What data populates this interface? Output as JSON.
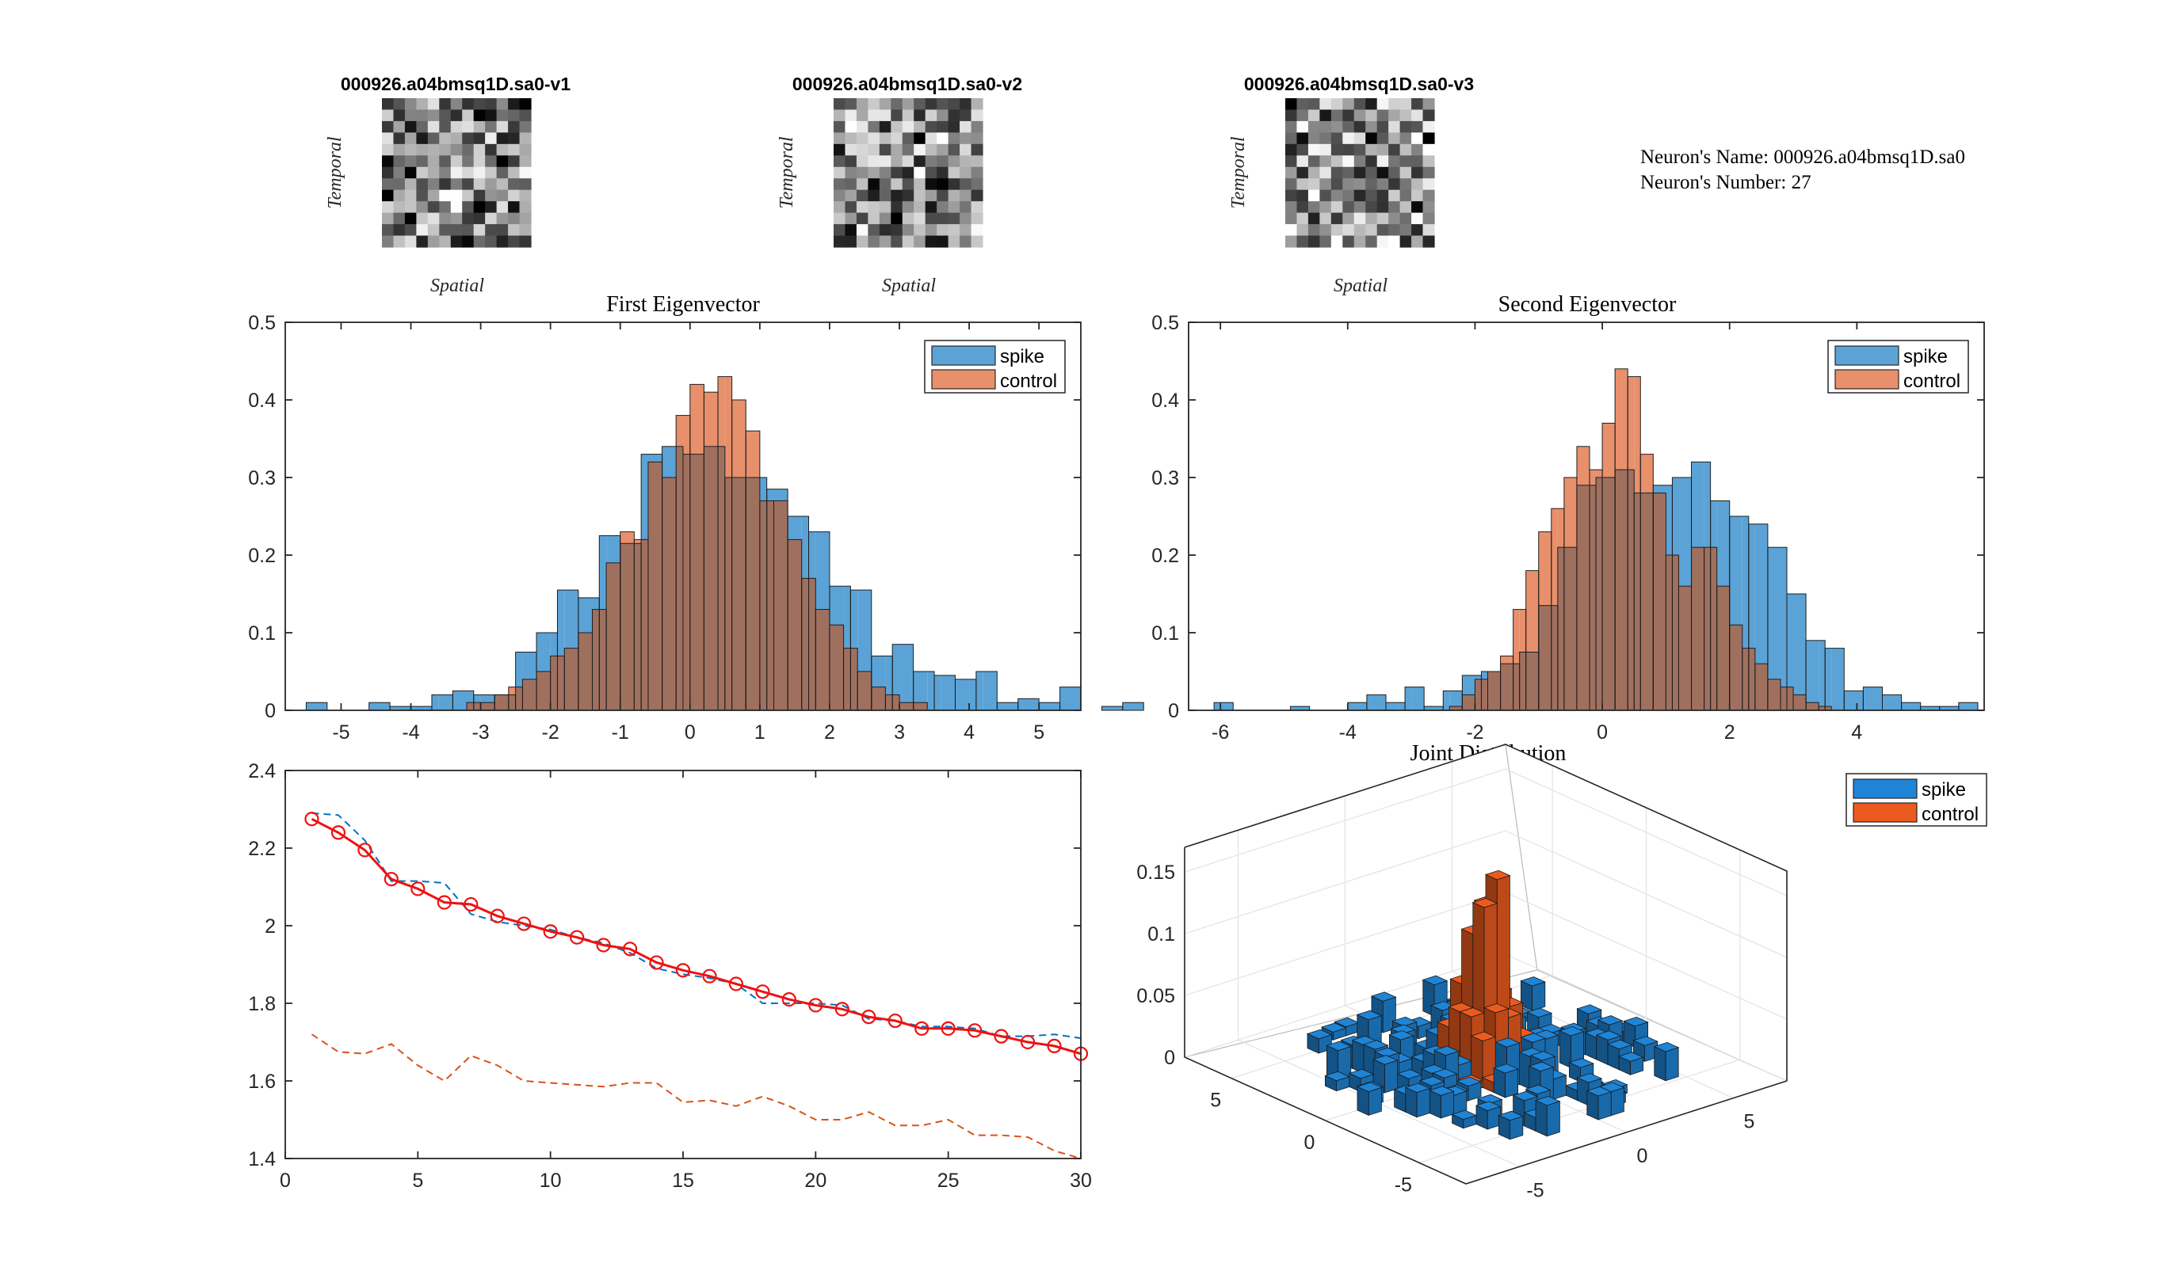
{
  "neuron_info": {
    "name_line": "Neuron's Name: 000926.a04bmsq1D.sa0",
    "number_line": "Neuron's Number: 27"
  },
  "filters": [
    {
      "title": "000926.a04bmsq1D.sa0-v1",
      "ylabel": "Temporal",
      "xlabel": "Spatial"
    },
    {
      "title": "000926.a04bmsq1D.sa0-v2",
      "ylabel": "Temporal",
      "xlabel": "Spatial"
    },
    {
      "title": "000926.a04bmsq1D.sa0-v3",
      "ylabel": "Temporal",
      "xlabel": "Spatial"
    }
  ],
  "colors": {
    "spike": "#5ba3d6",
    "control": "#e8906c",
    "overlap": "#a0705f",
    "red_line": "#ee1111",
    "blue_dash": "#0072bd",
    "orange_dash": "#d95319",
    "bar3_spike": "#1f84d6",
    "bar3_control": "#ec5b1e"
  },
  "chart_data": [
    {
      "type": "bar",
      "title": "First Eigenvector",
      "legend": [
        "spike",
        "control"
      ],
      "xlim": [
        -5.8,
        5.6
      ],
      "ylim": [
        0,
        0.5
      ],
      "xticks": [
        "-5",
        "-4",
        "-3",
        "-2",
        "-1",
        "0",
        "1",
        "2",
        "3",
        "4",
        "5"
      ],
      "yticks": [
        "0",
        "0.1",
        "0.2",
        "0.3",
        "0.4",
        "0.5"
      ],
      "spike": {
        "bin_start": -5.5,
        "bin_width": 0.3,
        "values": [
          0.01,
          0,
          0,
          0.01,
          0.005,
          0.005,
          0.02,
          0.025,
          0.02,
          0.02,
          0.075,
          0.1,
          0.155,
          0.145,
          0.225,
          0.215,
          0.33,
          0.34,
          0.33,
          0.34,
          0.3,
          0.3,
          0.285,
          0.25,
          0.23,
          0.16,
          0.155,
          0.07,
          0.085,
          0.05,
          0.045,
          0.04,
          0.05,
          0.01,
          0.015,
          0.01,
          0.03,
          0,
          0.005,
          0.01
        ]
      },
      "control": {
        "bin_start": -4.2,
        "bin_width": 0.2,
        "values": [
          0,
          0,
          0,
          0,
          0,
          0.01,
          0.01,
          0.02,
          0.03,
          0.04,
          0.05,
          0.07,
          0.08,
          0.1,
          0.13,
          0.19,
          0.23,
          0.22,
          0.32,
          0.3,
          0.38,
          0.42,
          0.41,
          0.43,
          0.4,
          0.36,
          0.27,
          0.27,
          0.22,
          0.17,
          0.13,
          0.11,
          0.08,
          0.05,
          0.03,
          0.02,
          0.01,
          0.01,
          0,
          0,
          0,
          0,
          0
        ]
      }
    },
    {
      "type": "bar",
      "title": "Second Eigenvector",
      "legend": [
        "spike",
        "control"
      ],
      "xlim": [
        -6.5,
        6
      ],
      "ylim": [
        0,
        0.5
      ],
      "xticks": [
        "-6",
        "-4",
        "-2",
        "0",
        "2",
        "4"
      ],
      "yticks": [
        "0",
        "0.1",
        "0.2",
        "0.3",
        "0.4",
        "0.5"
      ],
      "spike": {
        "bin_start": -6.1,
        "bin_width": 0.3,
        "values": [
          0.01,
          0,
          0,
          0,
          0.005,
          0,
          0,
          0.01,
          0.02,
          0.01,
          0.03,
          0.005,
          0.025,
          0.045,
          0.05,
          0.06,
          0.075,
          0.135,
          0.21,
          0.29,
          0.3,
          0.31,
          0.28,
          0.29,
          0.3,
          0.32,
          0.27,
          0.25,
          0.24,
          0.21,
          0.15,
          0.09,
          0.08,
          0.025,
          0.03,
          0.02,
          0.01,
          0.005,
          0.005,
          0.01
        ]
      },
      "control": {
        "bin_start": -3.2,
        "bin_width": 0.2,
        "values": [
          0,
          0,
          0,
          0,
          0.005,
          0.02,
          0.04,
          0.05,
          0.07,
          0.13,
          0.18,
          0.23,
          0.26,
          0.3,
          0.34,
          0.31,
          0.37,
          0.44,
          0.43,
          0.33,
          0.28,
          0.2,
          0.16,
          0.21,
          0.21,
          0.16,
          0.11,
          0.08,
          0.06,
          0.04,
          0.03,
          0.02,
          0.01,
          0.005
        ]
      }
    },
    {
      "type": "line",
      "title": "",
      "xlim": [
        0,
        30
      ],
      "ylim": [
        1.4,
        2.4
      ],
      "xticks": [
        "0",
        "5",
        "10",
        "15",
        "20",
        "25",
        "30"
      ],
      "yticks": [
        "1.4",
        "1.6",
        "1.8",
        "2",
        "2.2",
        "2.4"
      ],
      "x": [
        1,
        2,
        3,
        4,
        5,
        6,
        7,
        8,
        9,
        10,
        11,
        12,
        13,
        14,
        15,
        16,
        17,
        18,
        19,
        20,
        21,
        22,
        23,
        24,
        25,
        26,
        27,
        28,
        29,
        30
      ],
      "series": [
        {
          "style": "red-circle",
          "values": [
            2.275,
            2.24,
            2.195,
            2.12,
            2.095,
            2.06,
            2.055,
            2.025,
            2.005,
            1.985,
            1.97,
            1.95,
            1.94,
            1.905,
            1.885,
            1.87,
            1.85,
            1.83,
            1.81,
            1.795,
            1.785,
            1.765,
            1.755,
            1.735,
            1.735,
            1.73,
            1.715,
            1.7,
            1.69,
            1.67
          ]
        },
        {
          "style": "blue-dash",
          "values": [
            2.29,
            2.285,
            2.22,
            2.115,
            2.115,
            2.11,
            2.03,
            2.01,
            2.0,
            1.99,
            1.97,
            1.955,
            1.93,
            1.89,
            1.875,
            1.865,
            1.85,
            1.8,
            1.8,
            1.8,
            1.795,
            1.76,
            1.755,
            1.74,
            1.74,
            1.735,
            1.715,
            1.715,
            1.72,
            1.71
          ]
        },
        {
          "style": "orange-dash",
          "values": [
            1.72,
            1.675,
            1.67,
            1.695,
            1.64,
            1.6,
            1.665,
            1.64,
            1.6,
            1.595,
            1.59,
            1.585,
            1.595,
            1.595,
            1.545,
            1.55,
            1.535,
            1.56,
            1.535,
            1.5,
            1.5,
            1.52,
            1.485,
            1.485,
            1.5,
            1.46,
            1.46,
            1.455,
            1.42,
            1.4
          ]
        }
      ]
    },
    {
      "type": "bar3d",
      "title": "Joint Distribution",
      "legend": [
        "spike",
        "control"
      ],
      "zticks": [
        "0",
        "0.05",
        "0.1",
        "0.15"
      ],
      "xticks": [
        "-5",
        "0",
        "5"
      ],
      "yticks": [
        "5",
        "0",
        "-5"
      ],
      "zlim": [
        0,
        0.17
      ]
    }
  ]
}
